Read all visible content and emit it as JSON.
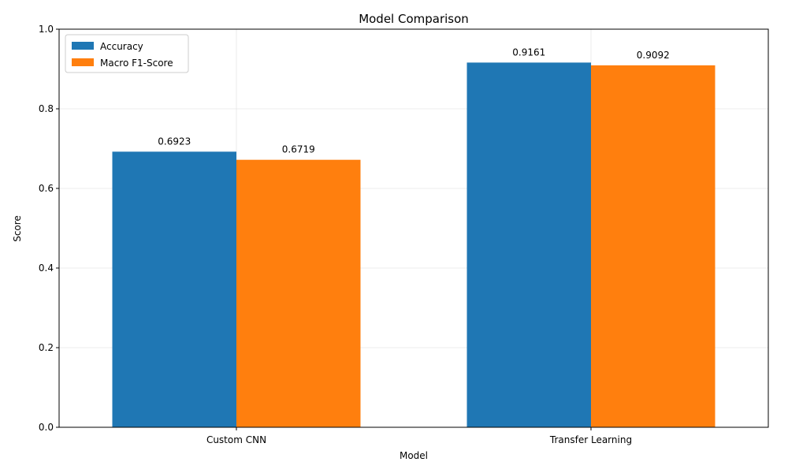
{
  "chart_data": {
    "type": "bar",
    "title": "Model Comparison",
    "xlabel": "Model",
    "ylabel": "Score",
    "categories": [
      "Custom CNN",
      "Transfer Learning"
    ],
    "series": [
      {
        "name": "Accuracy",
        "values": [
          0.6923,
          0.9161
        ],
        "color": "#1f77b4",
        "labels": [
          "0.6923",
          "0.9161"
        ]
      },
      {
        "name": "Macro F1-Score",
        "values": [
          0.6719,
          0.9092
        ],
        "color": "#ff7f0e",
        "labels": [
          "0.6719",
          "0.9092"
        ]
      }
    ],
    "ylim": [
      0,
      1
    ],
    "yticks": [
      0.0,
      0.2,
      0.4,
      0.6,
      0.8,
      1.0
    ],
    "ytick_labels": [
      "0.0",
      "0.2",
      "0.4",
      "0.6",
      "0.8",
      "1.0"
    ],
    "grid": true,
    "legend_position": "top-left"
  }
}
